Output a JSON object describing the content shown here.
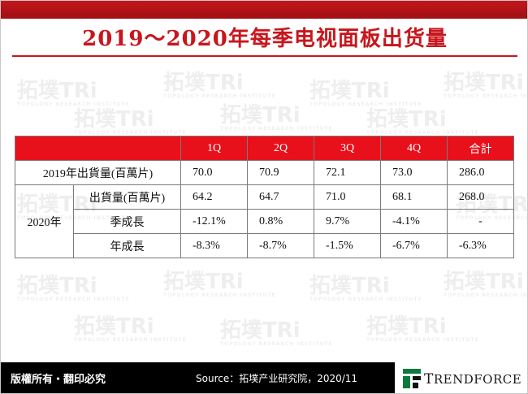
{
  "title": "2019～2020年每季电视面板出货量",
  "watermark": {
    "brand": "拓墣TRi",
    "sub": "TOPOLOGY RESEARCH INSTITUTE"
  },
  "table": {
    "headers": [
      "",
      "1Q",
      "2Q",
      "3Q",
      "4Q",
      "合計"
    ],
    "row2019": {
      "label": "2019年出貨量(百萬片)",
      "values": [
        "70.0",
        "70.9",
        "72.1",
        "73.0",
        "286.0"
      ]
    },
    "group2020": {
      "label": "2020年",
      "rows": [
        {
          "label": "出貨量(百萬片)",
          "values": [
            "64.2",
            "64.7",
            "71.0",
            "68.1",
            "268.0"
          ]
        },
        {
          "label": "季成長",
          "values": [
            "-12.1%",
            "0.8%",
            "9.7%",
            "-4.1%",
            "-"
          ]
        },
        {
          "label": "年成長",
          "values": [
            "-8.3%",
            "-8.7%",
            "-1.5%",
            "-6.7%",
            "-6.3%"
          ]
        }
      ]
    }
  },
  "footer": {
    "rights": "版權所有・翻印必究",
    "source": "Source：拓墣产业研究院，2020/11",
    "logo_text_first": "T",
    "logo_text_rest": "RENDFORCE",
    "logo_color": "#0b7a3e"
  }
}
